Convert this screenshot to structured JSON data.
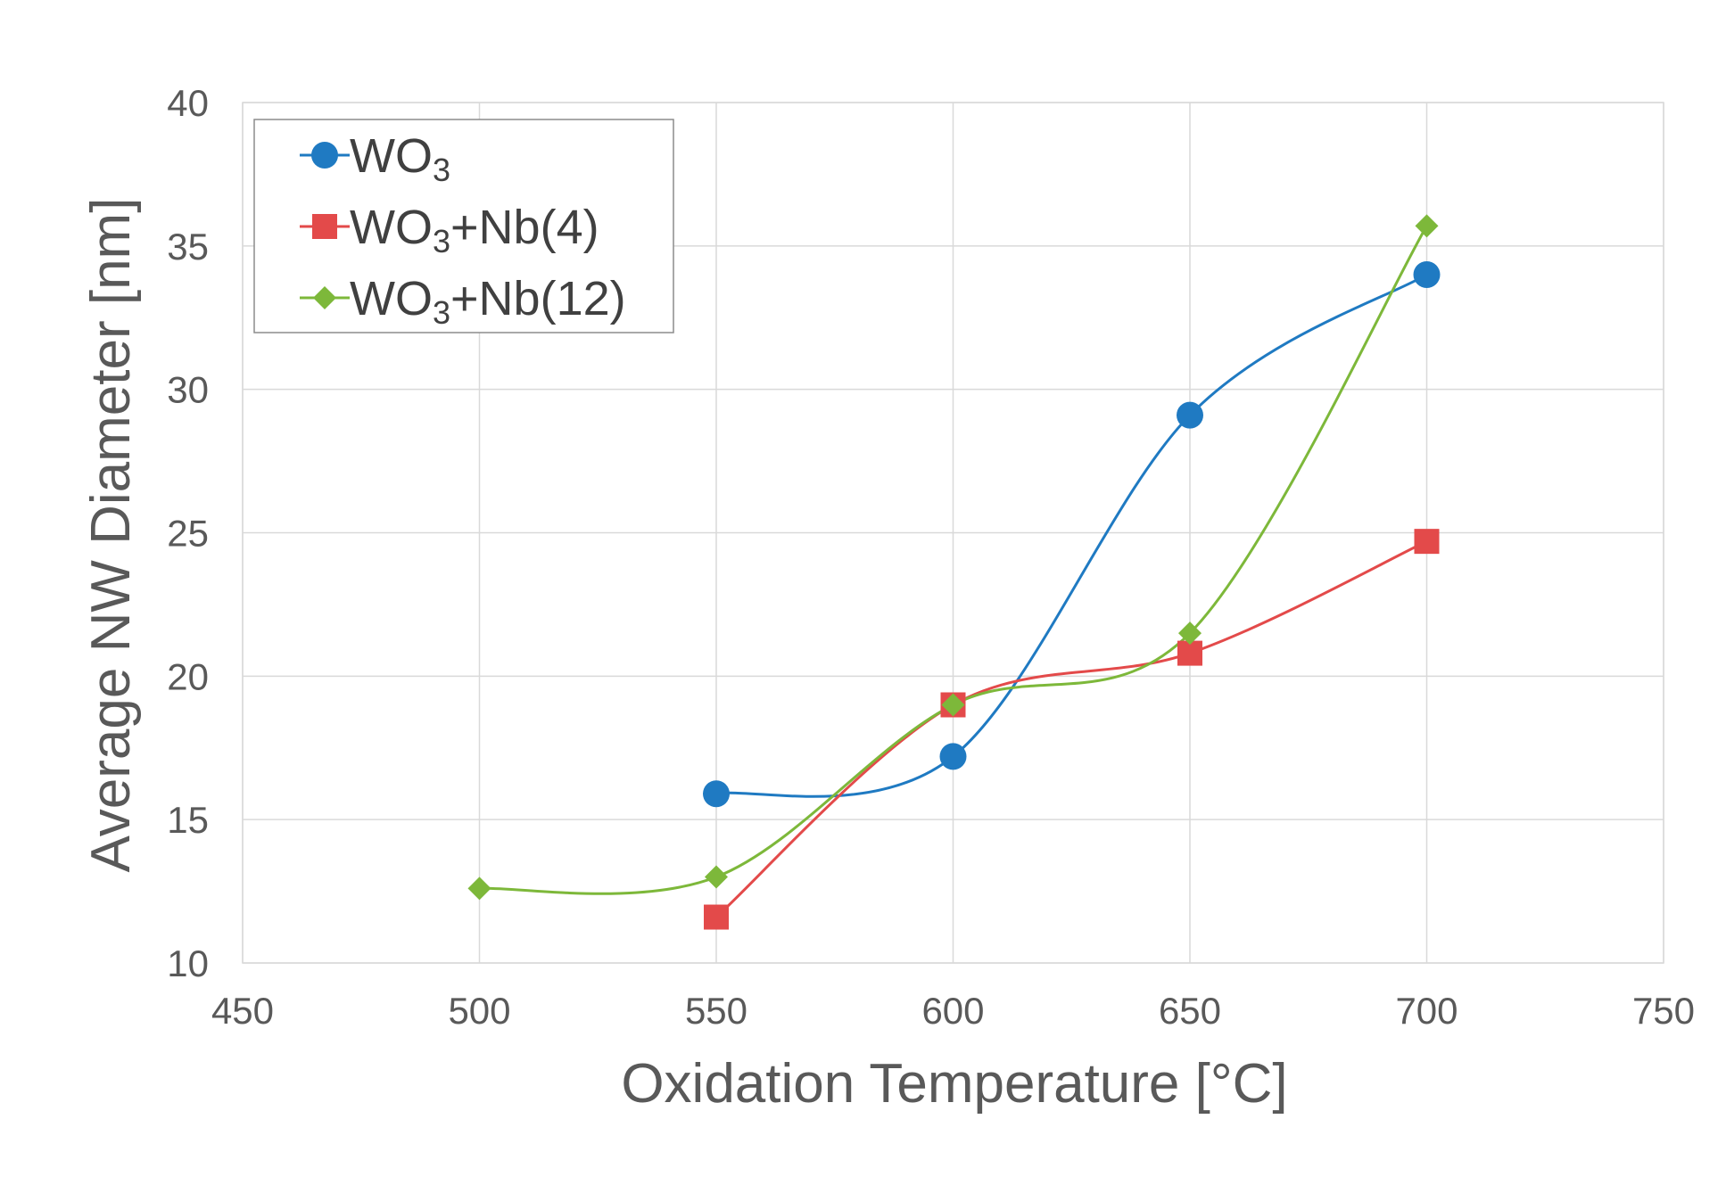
{
  "chart_data": {
    "type": "line",
    "title": "",
    "xlabel": "Oxidation Temperature [°C]",
    "ylabel": "Average NW Diameter [nm]",
    "xlim": [
      450,
      750
    ],
    "ylim": [
      10,
      40
    ],
    "xticks": [
      450,
      500,
      550,
      600,
      650,
      700,
      750
    ],
    "yticks": [
      10,
      15,
      20,
      25,
      30,
      35,
      40
    ],
    "grid": true,
    "smooth": true,
    "legend_position": "top-left",
    "series": [
      {
        "name": "WO3",
        "display_base": "WO",
        "display_sub": "3",
        "display_suffix": "",
        "color": "#1f7ac2",
        "marker": "circle",
        "points": [
          [
            550,
            15.9
          ],
          [
            600,
            17.2
          ],
          [
            650,
            29.1
          ],
          [
            700,
            34.0
          ]
        ]
      },
      {
        "name": "WO3+Nb(4)",
        "display_base": "WO",
        "display_sub": "3",
        "display_suffix": "+Nb(4)",
        "color": "#e34a4a",
        "marker": "square",
        "points": [
          [
            550,
            11.6
          ],
          [
            600,
            19.0
          ],
          [
            650,
            20.8
          ],
          [
            700,
            24.7
          ]
        ]
      },
      {
        "name": "WO3+Nb(12)",
        "display_base": "WO",
        "display_sub": "3",
        "display_suffix": "+Nb(12)",
        "color": "#7db83a",
        "marker": "diamond",
        "points": [
          [
            500,
            12.6
          ],
          [
            550,
            13.0
          ],
          [
            600,
            19.0
          ],
          [
            650,
            21.5
          ],
          [
            700,
            35.7
          ]
        ]
      }
    ]
  }
}
